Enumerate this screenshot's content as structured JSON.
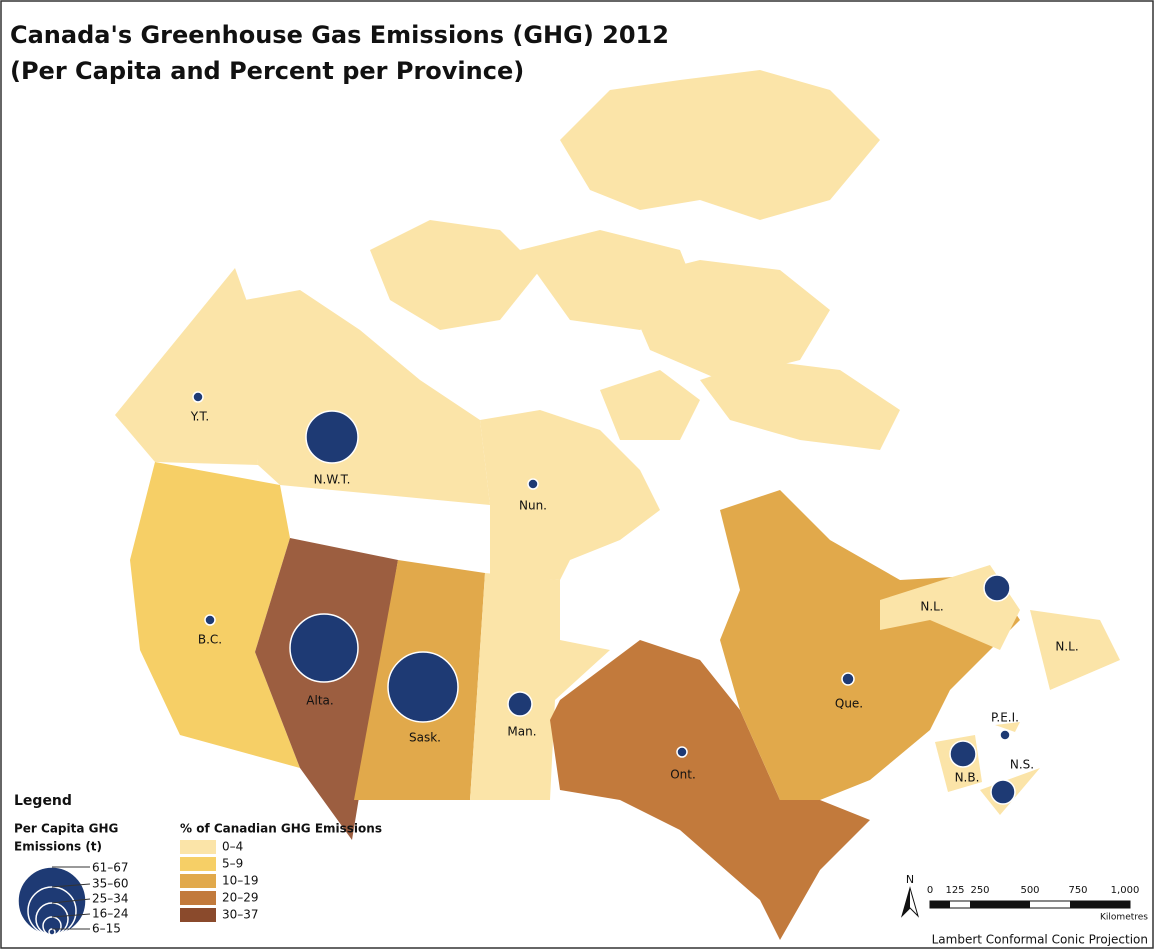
{
  "title": [
    "Canada's Greenhouse Gas Emissions (GHG) 2012",
    "(Per Capita and Percent per Province)"
  ],
  "provinces": [
    "Y.T.",
    "N.W.T.",
    "Nun.",
    "B.C.",
    "Alta.",
    "Sask.",
    "Man.",
    "Ont.",
    "Que.",
    "N.L.",
    "N.L.",
    "P.E.I.",
    "N.B.",
    "N.S."
  ],
  "legend": {
    "title": "Legend",
    "per_capita": {
      "title": [
        "Per Capita GHG",
        "Emissions (t)"
      ],
      "ranges": [
        "61–67",
        "35–60",
        "25–34",
        "16–24",
        "6–15"
      ]
    },
    "percent": {
      "title": "% of Canadian GHG Emissions",
      "ranges": [
        "0–4",
        "5–9",
        "10–19",
        "20–29",
        "30–37"
      ]
    }
  },
  "scale": {
    "north": "N",
    "labels": [
      "0",
      "125",
      "250",
      "500",
      "750",
      "1,000"
    ],
    "unit": "Kilometres"
  },
  "projection": "Lambert Conformal Conic Projection"
}
